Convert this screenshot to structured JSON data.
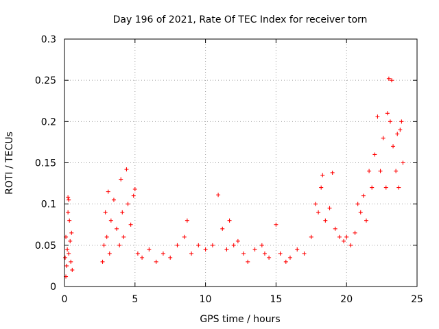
{
  "chart_data": {
    "type": "scatter",
    "title": "Day 196 of 2021, Rate Of TEC Index for receiver torn",
    "xlabel": "GPS time / hours",
    "ylabel": "ROTI / TECUs",
    "xlim": [
      0,
      25
    ],
    "ylim": [
      0,
      0.3
    ],
    "xticks": [
      0,
      5,
      10,
      15,
      20,
      25
    ],
    "yticks": [
      0,
      0.05,
      0.1,
      0.15,
      0.2,
      0.25,
      0.3
    ],
    "xtick_labels": [
      "0",
      "5",
      "10",
      "15",
      "20",
      "25"
    ],
    "ytick_labels": [
      "0",
      "0.05",
      "0.1",
      "0.15",
      "0.2",
      "0.25",
      "0.3"
    ],
    "grid": true,
    "marker": "+",
    "color": "#ff0000",
    "series": [
      {
        "name": "ROTI",
        "points": [
          [
            0.05,
            0.035
          ],
          [
            0.1,
            0.06
          ],
          [
            0.15,
            0.025
          ],
          [
            0.2,
            0.045
          ],
          [
            0.25,
            0.09
          ],
          [
            0.3,
            0.105
          ],
          [
            0.35,
            0.08
          ],
          [
            0.4,
            0.055
          ],
          [
            0.45,
            0.03
          ],
          [
            0.5,
            0.065
          ],
          [
            0.55,
            0.02
          ],
          [
            0.25,
            0.108
          ],
          [
            0.1,
            0.012
          ],
          [
            0.3,
            0.04
          ],
          [
            2.7,
            0.03
          ],
          [
            2.8,
            0.05
          ],
          [
            2.9,
            0.09
          ],
          [
            3.0,
            0.06
          ],
          [
            3.1,
            0.115
          ],
          [
            3.2,
            0.04
          ],
          [
            3.3,
            0.08
          ],
          [
            3.5,
            0.105
          ],
          [
            3.7,
            0.07
          ],
          [
            3.9,
            0.05
          ],
          [
            4.0,
            0.13
          ],
          [
            4.1,
            0.09
          ],
          [
            4.2,
            0.06
          ],
          [
            4.4,
            0.142
          ],
          [
            4.5,
            0.1
          ],
          [
            4.7,
            0.075
          ],
          [
            4.9,
            0.11
          ],
          [
            5.0,
            0.118
          ],
          [
            5.2,
            0.04
          ],
          [
            5.5,
            0.035
          ],
          [
            6.0,
            0.045
          ],
          [
            6.5,
            0.03
          ],
          [
            7.0,
            0.04
          ],
          [
            7.5,
            0.035
          ],
          [
            8.0,
            0.05
          ],
          [
            8.5,
            0.06
          ],
          [
            8.7,
            0.08
          ],
          [
            9.0,
            0.04
          ],
          [
            9.5,
            0.05
          ],
          [
            10.0,
            0.045
          ],
          [
            10.5,
            0.05
          ],
          [
            10.9,
            0.111
          ],
          [
            11.2,
            0.07
          ],
          [
            11.5,
            0.045
          ],
          [
            11.7,
            0.08
          ],
          [
            12.0,
            0.05
          ],
          [
            12.3,
            0.055
          ],
          [
            12.7,
            0.04
          ],
          [
            13.0,
            0.03
          ],
          [
            13.5,
            0.045
          ],
          [
            14.0,
            0.05
          ],
          [
            14.2,
            0.04
          ],
          [
            14.5,
            0.035
          ],
          [
            15.0,
            0.075
          ],
          [
            15.3,
            0.04
          ],
          [
            15.7,
            0.03
          ],
          [
            16.0,
            0.035
          ],
          [
            16.5,
            0.045
          ],
          [
            17.0,
            0.04
          ],
          [
            17.5,
            0.06
          ],
          [
            17.8,
            0.1
          ],
          [
            18.0,
            0.09
          ],
          [
            18.2,
            0.12
          ],
          [
            18.3,
            0.135
          ],
          [
            18.5,
            0.08
          ],
          [
            18.8,
            0.095
          ],
          [
            19.0,
            0.138
          ],
          [
            19.2,
            0.07
          ],
          [
            19.5,
            0.06
          ],
          [
            19.8,
            0.055
          ],
          [
            20.0,
            0.06
          ],
          [
            20.3,
            0.05
          ],
          [
            20.6,
            0.065
          ],
          [
            20.8,
            0.1
          ],
          [
            21.0,
            0.09
          ],
          [
            21.2,
            0.11
          ],
          [
            21.4,
            0.08
          ],
          [
            21.6,
            0.14
          ],
          [
            21.8,
            0.12
          ],
          [
            22.0,
            0.16
          ],
          [
            22.2,
            0.206
          ],
          [
            22.4,
            0.14
          ],
          [
            22.6,
            0.18
          ],
          [
            22.8,
            0.12
          ],
          [
            22.9,
            0.21
          ],
          [
            23.0,
            0.252
          ],
          [
            23.1,
            0.2
          ],
          [
            23.2,
            0.25
          ],
          [
            23.3,
            0.17
          ],
          [
            23.5,
            0.14
          ],
          [
            23.6,
            0.185
          ],
          [
            23.7,
            0.12
          ],
          [
            23.8,
            0.19
          ],
          [
            23.9,
            0.2
          ],
          [
            24.0,
            0.15
          ]
        ]
      }
    ]
  }
}
